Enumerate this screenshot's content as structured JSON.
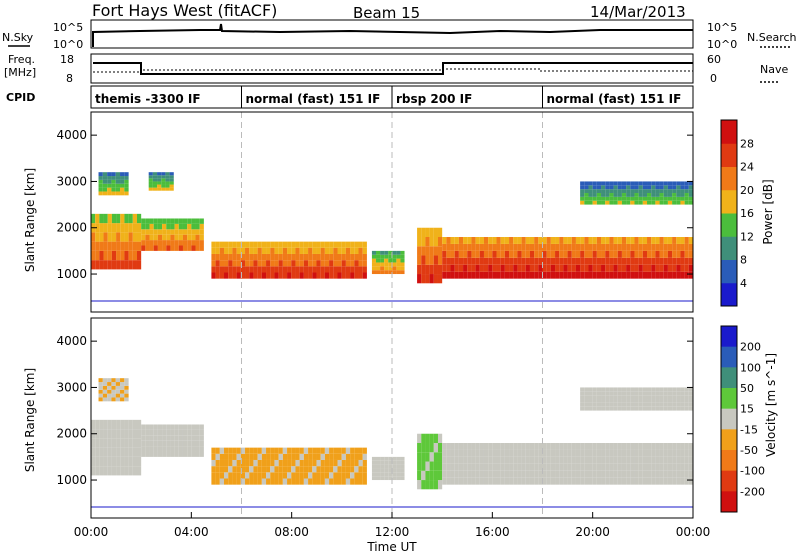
{
  "header": {
    "title": "Fort Hays West (fitACF)",
    "beam": "Beam 15",
    "date": "14/Mar/2013"
  },
  "summary": {
    "nsky_label": "N.Sky",
    "nsky_ticks": [
      "10^5",
      "10^0"
    ],
    "nsearch_label": "N.Search",
    "freq_label_1": "Freq.",
    "freq_label_2": "[MHz]",
    "freq_ticks": [
      "18",
      "8"
    ],
    "nave_label": "Nave",
    "nave_ticks": [
      "60",
      "0"
    ],
    "cpid_label": "CPID"
  },
  "cpid_segments": [
    {
      "label": "themis -3300 IF",
      "start_hour": 0
    },
    {
      "label": "normal (fast) 151 IF",
      "start_hour": 6
    },
    {
      "label": "rbsp 200 IF",
      "start_hour": 12
    },
    {
      "label": "normal (fast) 151 IF",
      "start_hour": 18
    }
  ],
  "chart_data": [
    {
      "type": "heatmap",
      "name": "power",
      "ylabel": "Slant Range [km]",
      "yticks": [
        "1000",
        "2000",
        "3000",
        "4000"
      ],
      "ylim": [
        180,
        4500
      ],
      "colorbar_label": "Power [dB]",
      "colorbar_ticks": [
        "4",
        "8",
        "12",
        "16",
        "20",
        "24",
        "28"
      ],
      "colorbar_range": [
        0,
        32
      ],
      "colors": [
        "#1a1acc",
        "#2a5cb8",
        "#3f8f7a",
        "#4bbd3c",
        "#f0b21a",
        "#f07a18",
        "#e03a12",
        "#d01010"
      ],
      "bands": [
        {
          "t0": 0.0,
          "t1": 2.0,
          "r0": 1100,
          "r1": 2300,
          "level": 16
        },
        {
          "t0": 2.0,
          "t1": 4.5,
          "r0": 1500,
          "r1": 2200,
          "level": 14
        },
        {
          "t0": 4.8,
          "t1": 11.0,
          "r0": 900,
          "r1": 1700,
          "level": 18
        },
        {
          "t0": 11.2,
          "t1": 12.5,
          "r0": 1000,
          "r1": 1500,
          "level": 12
        },
        {
          "t0": 13.0,
          "t1": 14.0,
          "r0": 800,
          "r1": 2000,
          "level": 18
        },
        {
          "t0": 14.0,
          "t1": 24.0,
          "r0": 900,
          "r1": 1800,
          "level": 20
        },
        {
          "t0": 0.3,
          "t1": 1.5,
          "r0": 2700,
          "r1": 3200,
          "level": 8
        },
        {
          "t0": 2.3,
          "t1": 3.3,
          "r0": 2800,
          "r1": 3200,
          "level": 8
        },
        {
          "t0": 19.5,
          "t1": 24.0,
          "r0": 2500,
          "r1": 3000,
          "level": 6
        }
      ]
    },
    {
      "type": "heatmap",
      "name": "velocity",
      "ylabel": "Slant Range [km]",
      "yticks": [
        "1000",
        "2000",
        "3000",
        "4000"
      ],
      "ylim": [
        180,
        4500
      ],
      "colorbar_label": "Velocity [m s^-1]",
      "colorbar_ticks": [
        "200",
        "100",
        "50",
        "15",
        "-15",
        "-50",
        "-100",
        "-200"
      ],
      "colorbar_range": [
        -250,
        250
      ],
      "colors": [
        "#1a1acc",
        "#2a5cb8",
        "#3f8f7a",
        "#5ec83a",
        "#c8c8c0",
        "#f0a01a",
        "#f07a18",
        "#e03a12",
        "#d01010"
      ],
      "bands": [
        {
          "t0": 0.0,
          "t1": 2.0,
          "r0": 1100,
          "r1": 2300,
          "velocity": 0
        },
        {
          "t0": 2.0,
          "t1": 4.5,
          "r0": 1500,
          "r1": 2200,
          "velocity": 0
        },
        {
          "t0": 4.8,
          "t1": 11.0,
          "r0": 900,
          "r1": 1700,
          "velocity": -40
        },
        {
          "t0": 11.2,
          "t1": 12.5,
          "r0": 1000,
          "r1": 1500,
          "velocity": 0
        },
        {
          "t0": 13.0,
          "t1": 14.0,
          "r0": 800,
          "r1": 2000,
          "velocity": 40
        },
        {
          "t0": 14.0,
          "t1": 24.0,
          "r0": 900,
          "r1": 1800,
          "velocity": 0
        },
        {
          "t0": 0.3,
          "t1": 1.5,
          "r0": 2700,
          "r1": 3200,
          "velocity": -20
        },
        {
          "t0": 19.5,
          "t1": 24.0,
          "r0": 2500,
          "r1": 3000,
          "velocity": 0
        }
      ]
    }
  ],
  "xaxis": {
    "label": "Time UT",
    "ticks": [
      "00:00",
      "04:00",
      "08:00",
      "12:00",
      "16:00",
      "20:00",
      "00:00"
    ],
    "xlim_hours": [
      0,
      24
    ]
  }
}
